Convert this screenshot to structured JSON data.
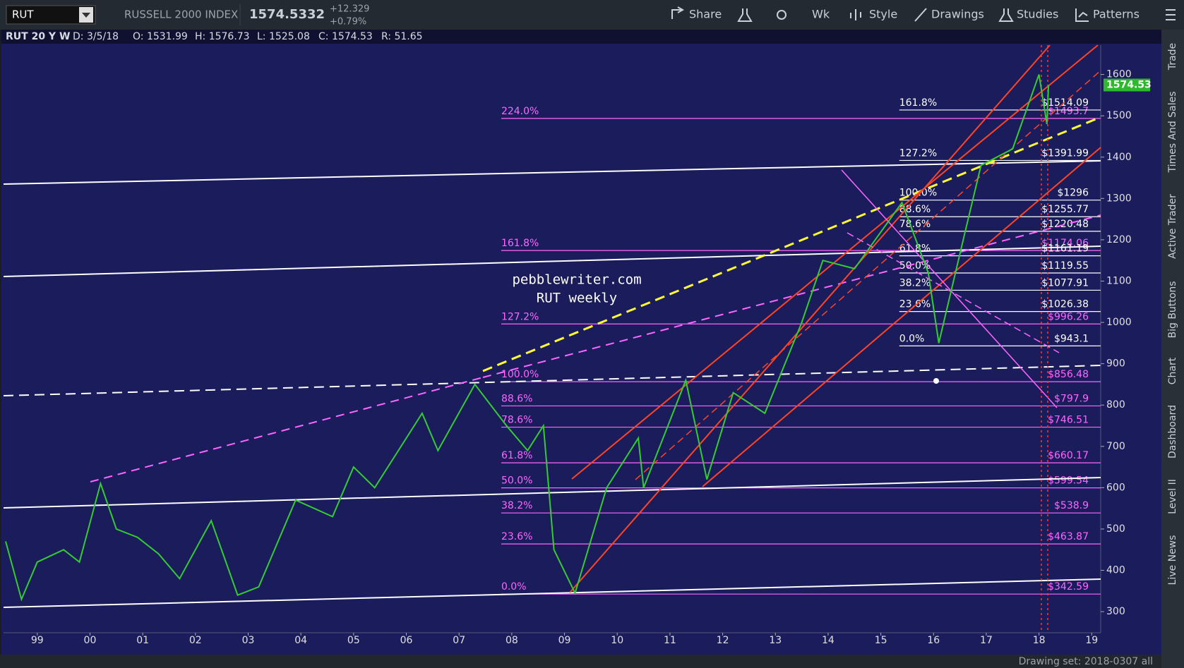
{
  "toolbar": {
    "symbol": "RUT",
    "index_name": "RUSSELL 2000 INDEX",
    "last": "1574.5332",
    "change": "+12.329",
    "change_pct": "+0.79%",
    "buttons": [
      "Share",
      "Wk",
      "Style",
      "Drawings",
      "Studies",
      "Patterns"
    ]
  },
  "info_bar": {
    "label": "RUT 20 Y W",
    "date": "D: 3/5/18",
    "open": "O: 1531.99",
    "high": "H: 1576.73",
    "low": "L: 1525.08",
    "close": "C: 1574.53",
    "range": "R: 51.65"
  },
  "side_tabs": [
    "Trade",
    "Times And Sales",
    "Active Trader",
    "Big Buttons",
    "Chart",
    "Dashboard",
    "Level II",
    "Live News"
  ],
  "footer": {
    "drawing_set": "Drawing set: 2018-0307 all"
  },
  "chart_data": {
    "type": "line",
    "watermark": [
      "pebblewriter.com",
      "RUT weekly"
    ],
    "x": [
      1998.4,
      1998.7,
      1999.0,
      1999.5,
      1999.8,
      2000.2,
      2000.5,
      2000.9,
      2001.3,
      2001.7,
      2002.3,
      2002.8,
      2003.2,
      2003.9,
      2004.6,
      2005.0,
      2005.4,
      2006.3,
      2006.6,
      2007.3,
      2007.9,
      2008.3,
      2008.6,
      2008.8,
      2009.2,
      2009.8,
      2010.4,
      2010.5,
      2011.3,
      2011.7,
      2012.2,
      2012.8,
      2013.5,
      2013.9,
      2014.5,
      2015.4,
      2015.9,
      2016.1,
      2016.6,
      2016.9,
      2017.5,
      2018.0,
      2018.15,
      2018.18
    ],
    "values": [
      470,
      330,
      420,
      450,
      420,
      610,
      500,
      480,
      440,
      380,
      520,
      340,
      360,
      570,
      530,
      650,
      600,
      780,
      690,
      850,
      750,
      690,
      750,
      450,
      345,
      600,
      720,
      600,
      860,
      620,
      830,
      780,
      1000,
      1150,
      1130,
      1290,
      1120,
      950,
      1220,
      1380,
      1420,
      1600,
      1480,
      1574.53
    ],
    "color": "#33cc33",
    "last_price": 1574.53,
    "xlim": [
      1998.36,
      2019.17
    ],
    "xticks": [
      {
        "value": 1999,
        "label": "99"
      },
      {
        "value": 2000,
        "label": "00"
      },
      {
        "value": 2001,
        "label": "01"
      },
      {
        "value": 2002,
        "label": "02"
      },
      {
        "value": 2003,
        "label": "03"
      },
      {
        "value": 2004,
        "label": "04"
      },
      {
        "value": 2005,
        "label": "05"
      },
      {
        "value": 2006,
        "label": "06"
      },
      {
        "value": 2007,
        "label": "07"
      },
      {
        "value": 2008,
        "label": "08"
      },
      {
        "value": 2009,
        "label": "09"
      },
      {
        "value": 2010,
        "label": "10"
      },
      {
        "value": 2011,
        "label": "11"
      },
      {
        "value": 2012,
        "label": "12"
      },
      {
        "value": 2013,
        "label": "13"
      },
      {
        "value": 2014,
        "label": "14"
      },
      {
        "value": 2015,
        "label": "15"
      },
      {
        "value": 2016,
        "label": "16"
      },
      {
        "value": 2017,
        "label": "17"
      },
      {
        "value": 2018,
        "label": "18"
      },
      {
        "value": 2019,
        "label": "19"
      }
    ],
    "ylim": [
      249,
      1671
    ],
    "yticks": [
      300,
      400,
      500,
      600,
      700,
      800,
      900,
      1000,
      1100,
      1200,
      1300,
      1400,
      1500,
      1600
    ],
    "fib_sets": [
      {
        "color": "#ff66ff",
        "start": 2007.8,
        "labels": [
          "224.0%",
          "161.8%",
          "127.2%",
          "100.0%",
          "88.6%",
          "78.6%",
          "61.8%",
          "50.0%",
          "38.2%",
          "23.6%",
          "0.0%"
        ],
        "values": [
          1493.7,
          1174.06,
          996.26,
          856.48,
          797.9,
          746.51,
          660.17,
          599.54,
          538.9,
          463.87,
          342.59
        ],
        "value_labels": [
          "$1493.7",
          "$1174.06",
          "$996.26",
          "$856.48",
          "$797.9",
          "$746.51",
          "$660.17",
          "$599.54",
          "$538.9",
          "$463.87",
          "$342.59"
        ]
      },
      {
        "color": "#ffffff",
        "start": 2015.35,
        "labels": [
          "161.8%",
          "127.2%",
          "100.0%",
          "88.6%",
          "78.6%",
          "61.8%",
          "50.0%",
          "38.2%",
          "23.6%",
          "0.0%"
        ],
        "values": [
          1514.09,
          1391.99,
          1296,
          1255.77,
          1220.48,
          1161.19,
          1119.55,
          1077.91,
          1026.38,
          943.1
        ],
        "value_labels": [
          "$1514.09",
          "$1391.99",
          "$1296",
          "$1255.77",
          "$1220.48",
          "$1161.19",
          "$1119.55",
          "$1077.91",
          "$1026.38",
          "$943.1"
        ]
      }
    ]
  }
}
